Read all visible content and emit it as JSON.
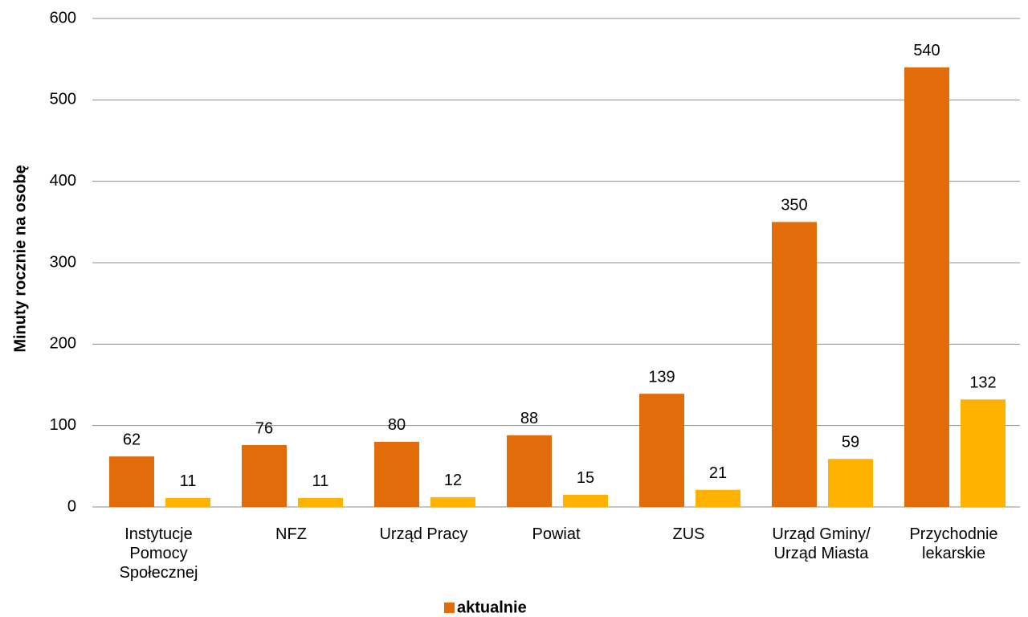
{
  "chart_data": {
    "type": "bar",
    "y_label": "Minuty rocznie na osobę",
    "categories": [
      "Instytucje Pomocy Społecznej",
      "NFZ",
      "Urząd Pracy",
      "Powiat",
      "ZUS",
      "Urząd Gminy/ Urząd Miasta",
      "Przychodnie lekarskie"
    ],
    "series": [
      {
        "name": "aktualnie",
        "color": "#E36C0A",
        "values": [
          62,
          76,
          80,
          88,
          139,
          350,
          540
        ]
      },
      {
        "color": "#FFB300",
        "values": [
          11,
          11,
          12,
          15,
          21,
          59,
          132
        ]
      }
    ],
    "ylim": [
      0,
      600
    ],
    "yticks": [
      0,
      100,
      200,
      300,
      400,
      500,
      600
    ],
    "grid": true,
    "legend": "bottom"
  }
}
